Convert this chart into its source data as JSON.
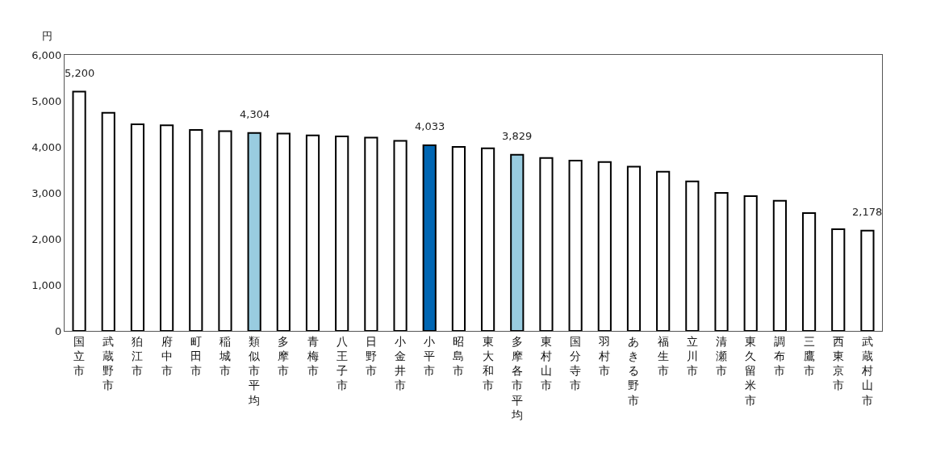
{
  "chart_data": {
    "type": "bar",
    "ylabel": "円",
    "categories": [
      "国立市",
      "武蔵野市",
      "狛江市",
      "府中市",
      "町田市",
      "稲城市",
      "類似市平均",
      "多摩市",
      "青梅市",
      "八王子市",
      "日野市",
      "小金井市",
      "小平市",
      "昭島市",
      "東大和市",
      "多摩各市平均",
      "東村山市",
      "国分寺市",
      "羽村市",
      "あきる野市",
      "福生市",
      "立川市",
      "清瀬市",
      "東久留米市",
      "調布市",
      "三鷹市",
      "西東京市",
      "武蔵村山市"
    ],
    "values": [
      5200,
      4740,
      4490,
      4470,
      4370,
      4340,
      4304,
      4290,
      4250,
      4230,
      4200,
      4130,
      4033,
      4000,
      3970,
      3829,
      3760,
      3700,
      3670,
      3570,
      3460,
      3250,
      3000,
      2930,
      2830,
      2560,
      2210,
      2178
    ],
    "colors": [
      "#ffffff",
      "#ffffff",
      "#ffffff",
      "#ffffff",
      "#ffffff",
      "#ffffff",
      "#99cce0",
      "#ffffff",
      "#ffffff",
      "#ffffff",
      "#ffffff",
      "#ffffff",
      "#0066b3",
      "#ffffff",
      "#ffffff",
      "#99cce0",
      "#ffffff",
      "#ffffff",
      "#ffffff",
      "#ffffff",
      "#ffffff",
      "#ffffff",
      "#ffffff",
      "#ffffff",
      "#ffffff",
      "#ffffff",
      "#ffffff",
      "#ffffff"
    ],
    "value_labels": [
      "5,200",
      null,
      null,
      null,
      null,
      null,
      "4,304",
      null,
      null,
      null,
      null,
      null,
      "4,033",
      null,
      null,
      "3,829",
      null,
      null,
      null,
      null,
      null,
      null,
      null,
      null,
      null,
      null,
      null,
      "2,178"
    ],
    "ylim": [
      0,
      6000
    ],
    "yticks": [
      0,
      {
        "value": 1000,
        "label": "1,000"
      },
      {
        "value": 2000,
        "label": "2,000"
      },
      {
        "value": 3000,
        "label": "3,000"
      },
      {
        "value": 4000,
        "label": "4,000"
      },
      {
        "value": 5000,
        "label": "5,000"
      },
      {
        "value": 6000,
        "label": "6,000"
      }
    ],
    "legend": false
  }
}
